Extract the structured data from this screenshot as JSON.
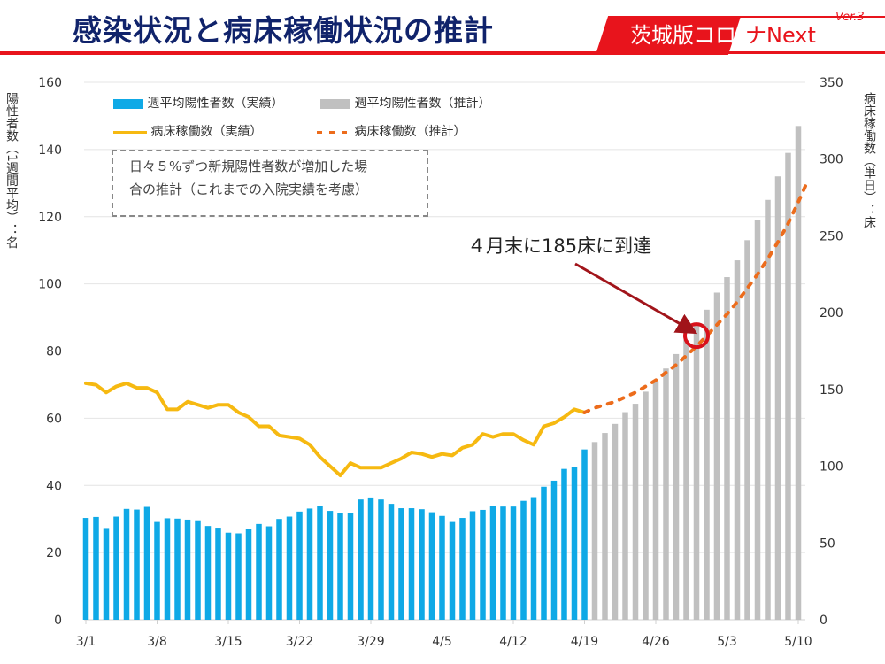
{
  "header": {
    "title": "感染状況と病床稼働状況の推計",
    "badge_red": "茨城版コロ",
    "badge_white": "ナNext",
    "version": "Ver.3"
  },
  "colors": {
    "actual_bar": "#0fa9e6",
    "projected_bar": "#c0c0c0",
    "actual_line": "#f6b911",
    "projected_line": "#ec6c1c",
    "highlight": "#d8111b",
    "arrow": "#a1141a",
    "title": "#10236b",
    "brand_red": "#e8141c"
  },
  "note": {
    "line1": "日々５%ずつ新規陽性者数が増加した場",
    "line2": "合の推計（これまでの入院実績を考慮）"
  },
  "callout": "４月末に185床に到達",
  "chart_data": {
    "type": "bar",
    "title": "感染状況と病床稼働状況の推計",
    "xlabel": "",
    "ylabel": "陽性者数（1週間平均）：名",
    "y2label": "病床稼働数（単日）：床",
    "ylim": [
      0,
      160
    ],
    "y2lim": [
      0,
      350
    ],
    "yticks": [
      "0",
      "20",
      "40",
      "60",
      "80",
      "100",
      "120",
      "140",
      "160"
    ],
    "y2ticks": [
      "0",
      "50",
      "100",
      "150",
      "200",
      "250",
      "300",
      "350"
    ],
    "xticks": [
      "3/1",
      "3/8",
      "3/15",
      "3/22",
      "3/29",
      "4/5",
      "4/12",
      "4/19",
      "4/26",
      "5/3",
      "5/10"
    ],
    "grid": true,
    "legend_position": "top-left",
    "x_start": "3/1",
    "x_end": "5/10",
    "series": [
      {
        "name": "週平均陽性者数（実績）",
        "type": "bar",
        "axis": "left",
        "start_index": 0,
        "values": [
          30.3,
          30.6,
          27.3,
          30.7,
          33.0,
          32.8,
          33.6,
          29.1,
          30.2,
          30.1,
          29.8,
          29.6,
          27.9,
          27.4,
          25.9,
          25.7,
          27.0,
          28.5,
          27.8,
          30.0,
          30.7,
          32.2,
          33.1,
          33.9,
          32.4,
          31.7,
          31.8,
          35.8,
          36.4,
          35.8,
          34.5,
          33.2,
          33.2,
          32.9,
          32.0,
          30.9,
          29.1,
          30.3,
          32.3,
          32.7,
          33.9,
          33.7,
          33.7,
          35.4,
          36.5,
          39.6,
          41.4,
          44.9,
          45.5,
          50.7
        ]
      },
      {
        "name": "週平均陽性者数（推計）",
        "type": "bar",
        "axis": "left",
        "start_index": 50,
        "values": [
          52.9,
          55.6,
          58.3,
          61.8,
          64.3,
          67.9,
          71.0,
          74.8,
          79.1,
          83.3,
          87.8,
          92.3,
          97.4,
          102,
          107,
          113,
          119,
          125,
          132,
          139,
          147
        ]
      },
      {
        "name": "病床稼働数（実績）",
        "type": "line",
        "axis": "right",
        "start_index": 0,
        "values": [
          154,
          153,
          148,
          152,
          154,
          151,
          151,
          148,
          137,
          137,
          142,
          140,
          138,
          140,
          140,
          135,
          132,
          126,
          126,
          120,
          119,
          118,
          114,
          106,
          100,
          94,
          102,
          99,
          99,
          99,
          102,
          105,
          109,
          108,
          106,
          108,
          107,
          112,
          114,
          121,
          119,
          121,
          121,
          117,
          114,
          126,
          128,
          132,
          137,
          135
        ]
      },
      {
        "name": "病床稼働数（推計）",
        "type": "line",
        "style": "dashed",
        "axis": "right",
        "start_index": 49,
        "values": [
          135,
          138,
          140,
          142,
          145,
          148,
          152,
          156,
          161,
          166,
          172,
          178,
          185,
          192,
          199,
          207,
          216,
          225,
          235,
          246,
          258,
          272,
          287
        ]
      }
    ],
    "annotations": [
      {
        "text": "４月末に185床に到達",
        "target_date": "4/30",
        "target_value": 185,
        "axis": "right"
      },
      {
        "text": "日々５%ずつ新規陽性者数が増加した場合の推計（これまでの入院実績を考慮）"
      }
    ]
  }
}
